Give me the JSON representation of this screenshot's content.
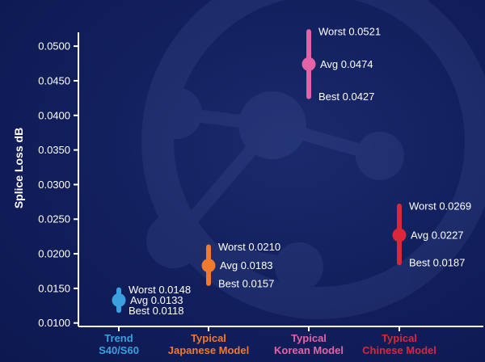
{
  "chart_data": {
    "type": "scatter",
    "title": "",
    "xlabel": "",
    "ylabel": "Splice Loss dB",
    "ylim": [
      0.0095,
      0.052
    ],
    "yticks": [
      "0.0100",
      "0.0150",
      "0.0200",
      "0.0250",
      "0.0300",
      "0.0350",
      "0.0400",
      "0.0450",
      "0.0500"
    ],
    "grid": false,
    "legend": "none",
    "categories": [
      {
        "line1": "Trend",
        "line2": "S40/S60",
        "color": "#3aa0e0"
      },
      {
        "line1": "Typical",
        "line2": "Japanese Model",
        "color": "#f07a2e"
      },
      {
        "line1": "Typical",
        "line2": "Korean Model",
        "color": "#e263a6"
      },
      {
        "line1": "Typical",
        "line2": "Chinese Model",
        "color": "#d8283a"
      }
    ],
    "series": [
      {
        "category": "Trend S40/S60",
        "worst": 0.0148,
        "avg": 0.0133,
        "best": 0.0118,
        "worst_label": "Worst 0.0148",
        "avg_label": "Avg 0.0133",
        "best_label": "Best 0.0118"
      },
      {
        "category": "Typical Japanese Model",
        "worst": 0.021,
        "avg": 0.0183,
        "best": 0.0157,
        "worst_label": "Worst 0.0210",
        "avg_label": "Avg 0.0183",
        "best_label": "Best 0.0157"
      },
      {
        "category": "Typical Korean Model",
        "worst": 0.0521,
        "avg": 0.0474,
        "best": 0.0427,
        "worst_label": "Worst 0.0521",
        "avg_label": "Avg 0.0474",
        "best_label": "Best 0.0427"
      },
      {
        "category": "Typical Chinese Model",
        "worst": 0.0269,
        "avg": 0.0227,
        "best": 0.0187,
        "worst_label": "Worst 0.0269",
        "avg_label": "Avg 0.0227",
        "best_label": "Best 0.0187"
      }
    ]
  }
}
